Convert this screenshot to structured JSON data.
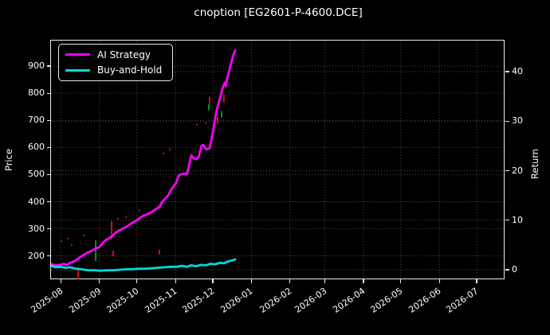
{
  "window": {
    "background": "#000000"
  },
  "colors": {
    "ai_strategy": "#ff00ff",
    "buy_and_hold": "#00dcdc",
    "candle_red": "#ff1111",
    "candle_green": "#00b336",
    "grid": "rgba(255,255,255,0.35)",
    "spine": "#ededed",
    "text": "#ffffff"
  },
  "chart_data": {
    "type": "line",
    "title": "cnoption [EG2601-P-4600.DCE]",
    "grid": true,
    "legend_position": "upper left",
    "legend": [
      {
        "label": "AI Strategy",
        "color": "#ff00ff"
      },
      {
        "label": "Buy-and-Hold",
        "color": "#00dcdc"
      }
    ],
    "x_axis": {
      "unit": "days since 2025-07-24 (left edge of plot)",
      "span_days": 365,
      "ticks": [
        {
          "day": 8,
          "label": "2025-08"
        },
        {
          "day": 39,
          "label": "2025-09"
        },
        {
          "day": 69,
          "label": "2025-10"
        },
        {
          "day": 100,
          "label": "2025-11"
        },
        {
          "day": 130,
          "label": "2025-12"
        },
        {
          "day": 161,
          "label": "2026-01"
        },
        {
          "day": 192,
          "label": "2026-02"
        },
        {
          "day": 220,
          "label": "2026-03"
        },
        {
          "day": 251,
          "label": "2026-04"
        },
        {
          "day": 281,
          "label": "2026-05"
        },
        {
          "day": 312,
          "label": "2026-06"
        },
        {
          "day": 342,
          "label": "2026-07"
        }
      ]
    },
    "left_axis": {
      "label": "Price",
      "min": 114,
      "max": 994,
      "ticks": [
        200,
        300,
        400,
        500,
        600,
        700,
        800,
        900
      ]
    },
    "right_axis": {
      "label": "Return",
      "min": -1.93,
      "max": 46.27,
      "ticks": [
        0,
        10,
        20,
        30,
        40
      ]
    },
    "series": [
      {
        "name": "AI Strategy",
        "axis": "right",
        "color": "#ff00ff",
        "linewidth": 2.8,
        "points": [
          [
            0,
            1.1
          ],
          [
            3.8,
            0.9
          ],
          [
            7.7,
            1.0
          ],
          [
            10.2,
            1.2
          ],
          [
            12.8,
            1.0
          ],
          [
            15.4,
            1.4
          ],
          [
            17.9,
            1.6
          ],
          [
            20.5,
            2.0
          ],
          [
            23.1,
            2.5
          ],
          [
            25.6,
            2.9
          ],
          [
            28.2,
            3.3
          ],
          [
            30.7,
            3.6
          ],
          [
            33.3,
            3.9
          ],
          [
            35.9,
            4.3
          ],
          [
            38.4,
            4.5
          ],
          [
            41.0,
            5.2
          ],
          [
            43.5,
            5.9
          ],
          [
            46.1,
            6.3
          ],
          [
            48.7,
            6.7
          ],
          [
            51.9,
            7.5
          ],
          [
            55.1,
            8.0
          ],
          [
            58.3,
            8.4
          ],
          [
            61.5,
            8.8
          ],
          [
            64.7,
            9.4
          ],
          [
            67.9,
            9.8
          ],
          [
            71.1,
            10.4
          ],
          [
            74.3,
            10.9
          ],
          [
            77.5,
            11.2
          ],
          [
            80.7,
            11.6
          ],
          [
            83.9,
            12.2
          ],
          [
            87.1,
            12.7
          ],
          [
            89.6,
            13.8
          ],
          [
            92.2,
            14.5
          ],
          [
            94.1,
            15.0
          ],
          [
            96.0,
            15.9
          ],
          [
            98.6,
            16.9
          ],
          [
            100.5,
            17.5
          ],
          [
            101.8,
            18.5
          ],
          [
            103.1,
            19.1
          ],
          [
            105.0,
            19.3
          ],
          [
            107.6,
            19.4
          ],
          [
            109.5,
            19.4
          ],
          [
            110.8,
            21.0
          ],
          [
            112.7,
            23.1
          ],
          [
            114.6,
            22.5
          ],
          [
            116.6,
            22.3
          ],
          [
            118.5,
            22.7
          ],
          [
            119.7,
            23.9
          ],
          [
            121.0,
            25.1
          ],
          [
            122.3,
            25.2
          ],
          [
            123.6,
            24.7
          ],
          [
            124.9,
            24.3
          ],
          [
            126.1,
            24.4
          ],
          [
            127.4,
            24.6
          ],
          [
            128.7,
            26.0
          ],
          [
            130.0,
            27.8
          ],
          [
            131.3,
            29.6
          ],
          [
            132.5,
            31.5
          ],
          [
            133.8,
            32.9
          ],
          [
            135.1,
            34.1
          ],
          [
            136.4,
            35.2
          ],
          [
            137.7,
            36.5
          ],
          [
            138.9,
            37.4
          ],
          [
            139.9,
            37.8
          ],
          [
            140.5,
            37.1
          ],
          [
            141.5,
            38.7
          ],
          [
            142.8,
            39.8
          ],
          [
            144.1,
            41.1
          ],
          [
            145.4,
            42.4
          ],
          [
            146.7,
            43.5
          ],
          [
            147.9,
            44.3
          ]
        ]
      },
      {
        "name": "Buy-and-Hold",
        "axis": "right",
        "color": "#00dcdc",
        "linewidth": 2.8,
        "points": [
          [
            0,
            0.8
          ],
          [
            3.8,
            0.5
          ],
          [
            7.7,
            0.6
          ],
          [
            11.5,
            0.4
          ],
          [
            15.4,
            0.5
          ],
          [
            19.9,
            0.2
          ],
          [
            24.3,
            0.1
          ],
          [
            29.5,
            -0.1
          ],
          [
            34.6,
            -0.1
          ],
          [
            39.7,
            -0.2
          ],
          [
            44.8,
            -0.1
          ],
          [
            50.0,
            -0.1
          ],
          [
            55.1,
            0.0
          ],
          [
            60.2,
            0.1
          ],
          [
            65.3,
            0.1
          ],
          [
            70.4,
            0.2
          ],
          [
            75.6,
            0.2
          ],
          [
            80.7,
            0.3
          ],
          [
            85.8,
            0.4
          ],
          [
            90.9,
            0.5
          ],
          [
            96.1,
            0.6
          ],
          [
            101.2,
            0.6
          ],
          [
            105.0,
            0.8
          ],
          [
            108.9,
            0.6
          ],
          [
            112.7,
            0.9
          ],
          [
            116.6,
            0.7
          ],
          [
            120.4,
            1.0
          ],
          [
            124.2,
            0.9
          ],
          [
            128.1,
            1.2
          ],
          [
            131.9,
            1.1
          ],
          [
            135.7,
            1.4
          ],
          [
            139.0,
            1.3
          ],
          [
            141.5,
            1.6
          ],
          [
            144.1,
            1.8
          ],
          [
            146.0,
            1.9
          ],
          [
            147.9,
            2.1
          ]
        ]
      }
    ],
    "candles": [
      {
        "day": 21.8,
        "high": 158,
        "low": 114,
        "color": "red"
      },
      {
        "day": 35.9,
        "high": 258,
        "low": 182,
        "color": "green"
      },
      {
        "day": 48.7,
        "high": 328,
        "low": 264,
        "color": "red"
      },
      {
        "day": 49.9,
        "high": 220,
        "low": 199,
        "color": "red"
      },
      {
        "day": 87.1,
        "high": 223,
        "low": 205,
        "color": "red"
      },
      {
        "day": 126.8,
        "high": 760,
        "low": 737,
        "color": "green"
      },
      {
        "day": 127.4,
        "high": 787,
        "low": 760,
        "color": "red"
      },
      {
        "day": 133.8,
        "high": 710,
        "low": 687,
        "color": "red"
      },
      {
        "day": 137.0,
        "high": 734,
        "low": 710,
        "color": "green"
      },
      {
        "day": 138.9,
        "high": 795,
        "low": 766,
        "color": "red"
      }
    ],
    "dots": [
      {
        "day": 8.3,
        "price": 255,
        "color": "red"
      },
      {
        "day": 13.4,
        "price": 264,
        "color": "red"
      },
      {
        "day": 16.6,
        "price": 240,
        "color": "red"
      },
      {
        "day": 26.3,
        "price": 276,
        "color": "red"
      },
      {
        "day": 53.8,
        "price": 337,
        "color": "red"
      },
      {
        "day": 60.2,
        "price": 343,
        "color": "red"
      },
      {
        "day": 71.1,
        "price": 367,
        "color": "red"
      },
      {
        "day": 90.3,
        "price": 578,
        "color": "red"
      },
      {
        "day": 95.4,
        "price": 593,
        "color": "red"
      },
      {
        "day": 117.2,
        "price": 684,
        "color": "red"
      },
      {
        "day": 124.2,
        "price": 690,
        "color": "red"
      }
    ]
  }
}
